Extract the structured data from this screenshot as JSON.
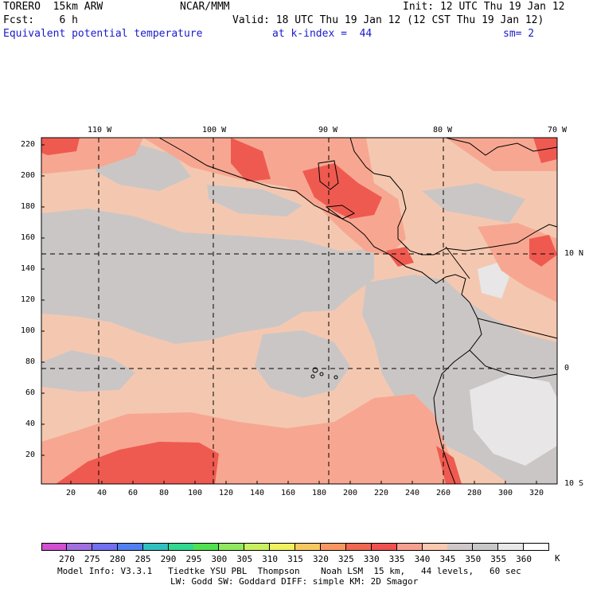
{
  "header": {
    "model": "TORERO",
    "resolution": "15km ARW",
    "org": "NCAR/MMM",
    "init": "Init: 12 UTC Thu 19 Jan 12",
    "fcst_label": "Fcst:",
    "fcst_value": "6 h",
    "valid": "Valid: 18 UTC Thu 19 Jan 12 (12 CST Thu 19 Jan 12)",
    "field": "Equivalent potential temperature",
    "level": "at k-index =  44",
    "smoothing": "sm= 2"
  },
  "axes": {
    "top_lon_labels": [
      "110 W",
      "100 W",
      "90 W",
      "80 W",
      "70 W"
    ],
    "right_lat_labels": [
      "10 N",
      "0",
      "10 S"
    ],
    "left_y_ticks": [
      "220",
      "200",
      "180",
      "160",
      "140",
      "120",
      "100",
      "80",
      "60",
      "40",
      "20"
    ],
    "bottom_x_ticks": [
      "20",
      "40",
      "60",
      "80",
      "100",
      "120",
      "140",
      "160",
      "180",
      "200",
      "220",
      "240",
      "260",
      "280",
      "300",
      "320"
    ]
  },
  "colorbar": {
    "unit": "K",
    "levels": [
      "270",
      "275",
      "280",
      "285",
      "290",
      "295",
      "300",
      "305",
      "310",
      "315",
      "320",
      "325",
      "330",
      "335",
      "340",
      "345",
      "350",
      "355",
      "360"
    ],
    "colors": [
      "#d050d0",
      "#a070e0",
      "#7070f0",
      "#5080f0",
      "#30c0c0",
      "#30d890",
      "#50e050",
      "#90e860",
      "#c8f060",
      "#f0f060",
      "#f8c860",
      "#f89860",
      "#f06850",
      "#f05050",
      "#f8a090",
      "#f8c8b0",
      "#d0c8c8",
      "#c8c8c8",
      "#e8e8e8",
      "#ffffff"
    ]
  },
  "footer": {
    "line1": "Model Info: V3.3.1   Tiedtke YSU PBL  Thompson    Noah LSM  15 km,   44 levels,   60 sec",
    "line2": "LW: Godd SW: Goddard DIFF: simple KM: 2D Smagor"
  }
}
